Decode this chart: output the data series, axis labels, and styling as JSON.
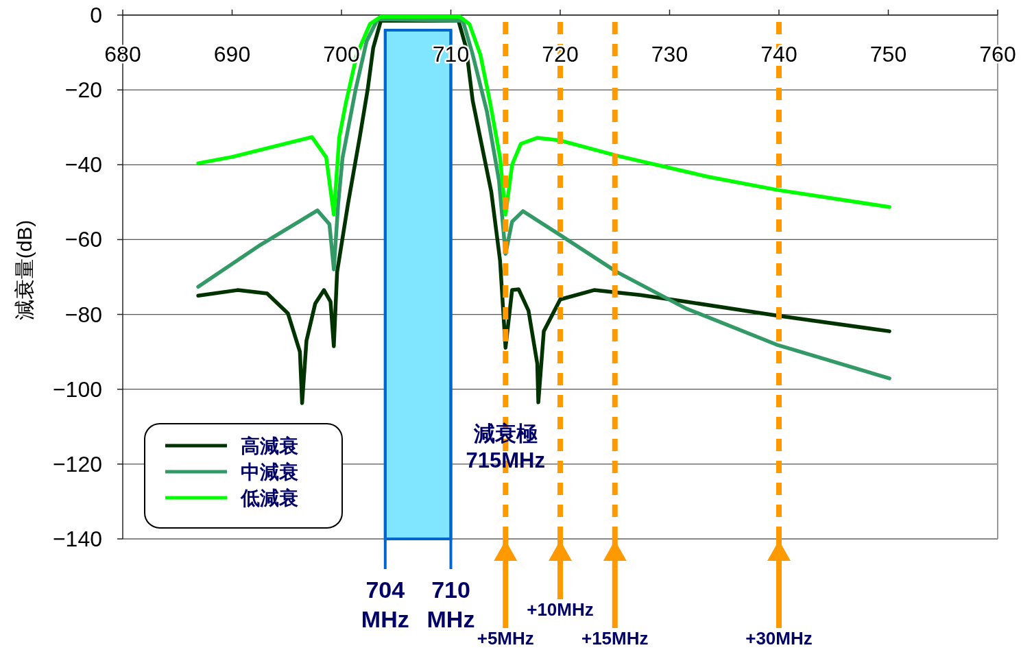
{
  "chart_data": {
    "type": "line",
    "ylabel": "減衰量(dB)",
    "xlim": [
      680,
      760
    ],
    "ylim": [
      -140,
      0
    ],
    "xticks": [
      680,
      690,
      700,
      710,
      720,
      730,
      740,
      750,
      760
    ],
    "yticks": [
      {
        "value": -140,
        "label": "−140"
      },
      {
        "value": -120,
        "label": "−120"
      },
      {
        "value": -100,
        "label": "−100"
      },
      {
        "value": -80,
        "label": "−80"
      },
      {
        "value": -60,
        "label": "−60"
      },
      {
        "value": -40,
        "label": "−40"
      },
      {
        "value": -20,
        "label": "−20"
      },
      0
    ],
    "grid": "y",
    "legend": "bottom left",
    "line_style": "solid",
    "marker": "none",
    "series": [
      {
        "name": "高減衰",
        "color": "#003300",
        "x": [
          686.9,
          690.5,
          693.2,
          695.1,
          696.2,
          696.4,
          696.8,
          697.6,
          698.4,
          699.0,
          699.3,
          699.6,
          700.6,
          701.7,
          702.4,
          702.9,
          703.6,
          710.7,
          711.4,
          712.0,
          713.7,
          714.5,
          715.0,
          715.6,
          716.2,
          717.1,
          717.9,
          718.0,
          718.5,
          720.0,
          723.1,
          727.3,
          731.5,
          739.8,
          750.1
        ],
        "values": [
          -75.0,
          -73.5,
          -74.4,
          -79.7,
          -90.0,
          -103.7,
          -87.0,
          -77.1,
          -73.5,
          -76.6,
          -88.5,
          -68.7,
          -50.4,
          -32.1,
          -19.8,
          -8.8,
          -1.5,
          -1.5,
          -8.8,
          -22.9,
          -47.3,
          -65.6,
          -88.9,
          -73.5,
          -73.3,
          -79.0,
          -93.1,
          -103.5,
          -84.5,
          -76.0,
          -73.5,
          -74.8,
          -76.6,
          -80.3,
          -84.5
        ]
      },
      {
        "name": "中減衰",
        "color": "#339966",
        "x": [
          686.9,
          692.6,
          697.8,
          698.9,
          699.3,
          699.7,
          700.1,
          701.3,
          702.3,
          703.3,
          711.1,
          712.0,
          713.3,
          714.4,
          715.0,
          715.6,
          716.6,
          720.0,
          725.2,
          731.5,
          739.8,
          750.1
        ],
        "values": [
          -72.6,
          -61.4,
          -52.2,
          -55.9,
          -68.0,
          -50.4,
          -38.1,
          -19.8,
          -7.0,
          -1.1,
          -1.5,
          -10.6,
          -25.8,
          -44.2,
          -63.8,
          -55.2,
          -52.4,
          -58.8,
          -68.7,
          -78.4,
          -88.1,
          -97.1
        ]
      },
      {
        "name": "低減衰",
        "color": "#00ff00",
        "x": [
          686.9,
          690.0,
          697.3,
          698.6,
          699.3,
          699.8,
          700.4,
          701.4,
          702.6,
          703.6,
          710.8,
          711.7,
          712.7,
          713.6,
          714.5,
          715.0,
          715.6,
          716.4,
          717.9,
          720.0,
          725.2,
          733.5,
          739.8,
          750.1
        ],
        "values": [
          -39.6,
          -37.9,
          -32.6,
          -38.0,
          -53.3,
          -32.6,
          -23.5,
          -10.6,
          -2.4,
          -0.4,
          -0.4,
          -2.4,
          -10.6,
          -23.5,
          -38.1,
          -53.3,
          -40.0,
          -34.4,
          -32.8,
          -33.5,
          -37.6,
          -43.2,
          -46.7,
          -51.3
        ]
      }
    ],
    "bands": [
      {
        "axis": "x",
        "from": 704,
        "to": 710,
        "color": "#80e5ff"
      }
    ],
    "ref_lines": [
      {
        "axis": "x",
        "value": 704,
        "label": "704 MHz",
        "color": "#0066cc",
        "line_style": "solid"
      },
      {
        "axis": "x",
        "value": 710,
        "label": "710 MHz",
        "color": "#0066cc",
        "line_style": "solid"
      },
      {
        "axis": "x",
        "value": 715,
        "label": "+5MHz",
        "color": "#ff9900",
        "line_style": "dashed"
      },
      {
        "axis": "x",
        "value": 720,
        "label": "+10MHz",
        "color": "#ff9900",
        "line_style": "dashed"
      },
      {
        "axis": "x",
        "value": 725,
        "label": "+15MHz",
        "color": "#ff9900",
        "line_style": "dashed"
      },
      {
        "axis": "x",
        "value": 740,
        "label": "+30MHz",
        "color": "#ff9900",
        "line_style": "dashed"
      }
    ],
    "annotations": [
      {
        "text": "減衰極\n715MHz",
        "x": 715,
        "y": -112
      }
    ]
  }
}
